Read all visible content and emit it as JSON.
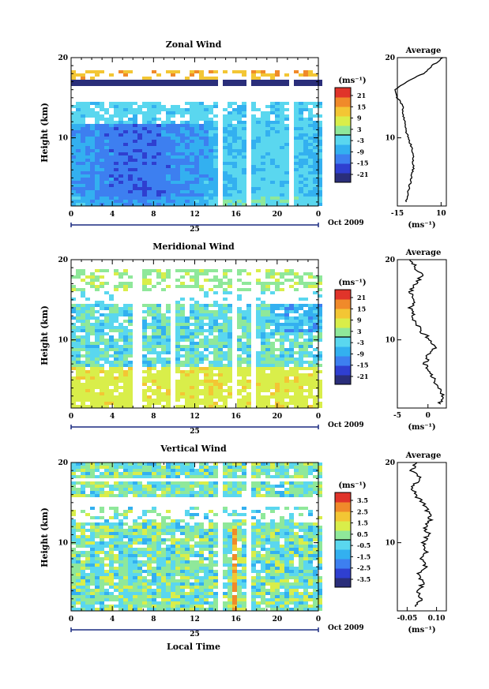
{
  "panels": [
    {
      "id": "zonal",
      "title": "Zonal Wind",
      "ylabel": "Height (km)",
      "yticks": [
        "20",
        "10"
      ],
      "xticks": [
        "0",
        "4",
        "8",
        "12",
        "16",
        "20",
        "0"
      ],
      "day_label": "25",
      "date_label": "Oct 2009",
      "colorbar_unit": "(ms⁻¹)",
      "colorbar_ticks": [
        "21",
        "15",
        "9",
        "3",
        "-3",
        "-9",
        "-15",
        "-21"
      ],
      "avg_title": "Average",
      "avg_yticks": [
        "20",
        "10"
      ],
      "avg_xticks": [
        "-15",
        "10"
      ],
      "avg_unit": "(ms⁻¹)"
    },
    {
      "id": "meridional",
      "title": "Meridional Wind",
      "ylabel": "Height (km)",
      "yticks": [
        "20",
        "10"
      ],
      "xticks": [
        "0",
        "4",
        "8",
        "12",
        "16",
        "20",
        "0"
      ],
      "day_label": "25",
      "date_label": "Oct 2009",
      "colorbar_unit": "(ms⁻¹)",
      "colorbar_ticks": [
        "21",
        "15",
        "9",
        "3",
        "-3",
        "-9",
        "-15",
        "-21"
      ],
      "avg_title": "Average",
      "avg_yticks": [
        "20",
        "10"
      ],
      "avg_xticks": [
        "-5",
        "0"
      ],
      "avg_unit": "(ms⁻¹)"
    },
    {
      "id": "vertical",
      "title": "Vertical Wind",
      "ylabel": "Height (km)",
      "yticks": [
        "20",
        "10"
      ],
      "xticks": [
        "0",
        "4",
        "8",
        "12",
        "16",
        "20",
        "0"
      ],
      "day_label": "25",
      "date_label": "Oct 2009",
      "xlabel": "Local Time",
      "colorbar_unit": "(ms⁻¹)",
      "colorbar_ticks": [
        "3.5",
        "2.5",
        "1.5",
        "0.5",
        "-0.5",
        "-1.5",
        "-2.5",
        "-3.5"
      ],
      "avg_title": "Average",
      "avg_yticks": [
        "20",
        "10"
      ],
      "avg_xticks": [
        "-0.05",
        "0.10"
      ],
      "avg_unit": "(ms⁻¹)"
    }
  ],
  "colors": {
    "colormap": [
      "#2a2e7a",
      "#2f3fd0",
      "#3d7ff0",
      "#33b0f0",
      "#5ad7ef",
      "#8fe89a",
      "#d9ee4a",
      "#f3c634",
      "#f08a2a",
      "#e0342a"
    ]
  },
  "chart_data": [
    {
      "type": "heatmap",
      "title": "Zonal Wind",
      "xlabel": "",
      "ylabel": "Height (km)",
      "xlim": [
        0,
        24
      ],
      "ylim": [
        1.5,
        20
      ],
      "zlim": [
        -24,
        24
      ],
      "average_profile": {
        "title": "Average",
        "xlim": [
          -15,
          13
        ],
        "heights": [
          2,
          3,
          4,
          5,
          6,
          7,
          8,
          9,
          10,
          11,
          12,
          13,
          14,
          15,
          16,
          17,
          18,
          19,
          20
        ],
        "values": [
          -10,
          -9,
          -8,
          -7,
          -6,
          -6,
          -6,
          -7,
          -9,
          -10,
          -11,
          -12,
          -12,
          -15,
          -16,
          -10,
          0,
          5,
          11
        ]
      }
    },
    {
      "type": "heatmap",
      "title": "Meridional Wind",
      "xlabel": "",
      "ylabel": "Height (km)",
      "xlim": [
        0,
        24
      ],
      "ylim": [
        1.5,
        20
      ],
      "zlim": [
        -24,
        24
      ],
      "average_profile": {
        "title": "Average",
        "xlim": [
          -5,
          3
        ],
        "heights": [
          2,
          3,
          4,
          5,
          6,
          7,
          8,
          9,
          10,
          11,
          12,
          13,
          14,
          15,
          16,
          17,
          18,
          19,
          20
        ],
        "values": [
          2,
          2.5,
          2,
          1,
          0,
          -0.5,
          0,
          1,
          0.5,
          -1,
          -2,
          -2.5,
          -3,
          -2,
          -3,
          -2,
          -1,
          -2,
          -3
        ]
      }
    },
    {
      "type": "heatmap",
      "title": "Vertical Wind",
      "xlabel": "Local Time",
      "ylabel": "Height (km)",
      "xlim": [
        0,
        24
      ],
      "ylim": [
        1.5,
        20
      ],
      "zlim": [
        -4,
        4
      ],
      "average_profile": {
        "title": "Average",
        "xlim": [
          -0.1,
          0.15
        ],
        "heights": [
          2,
          3,
          4,
          5,
          6,
          7,
          8,
          9,
          10,
          11,
          12,
          13,
          14,
          15,
          16,
          17,
          18,
          19,
          20
        ],
        "values": [
          0.0,
          0.02,
          0.01,
          0.03,
          0.0,
          0.04,
          0.02,
          0.05,
          0.03,
          0.06,
          0.04,
          0.07,
          0.05,
          0.03,
          -0.01,
          -0.02,
          0.02,
          -0.03,
          0.0
        ]
      }
    }
  ]
}
